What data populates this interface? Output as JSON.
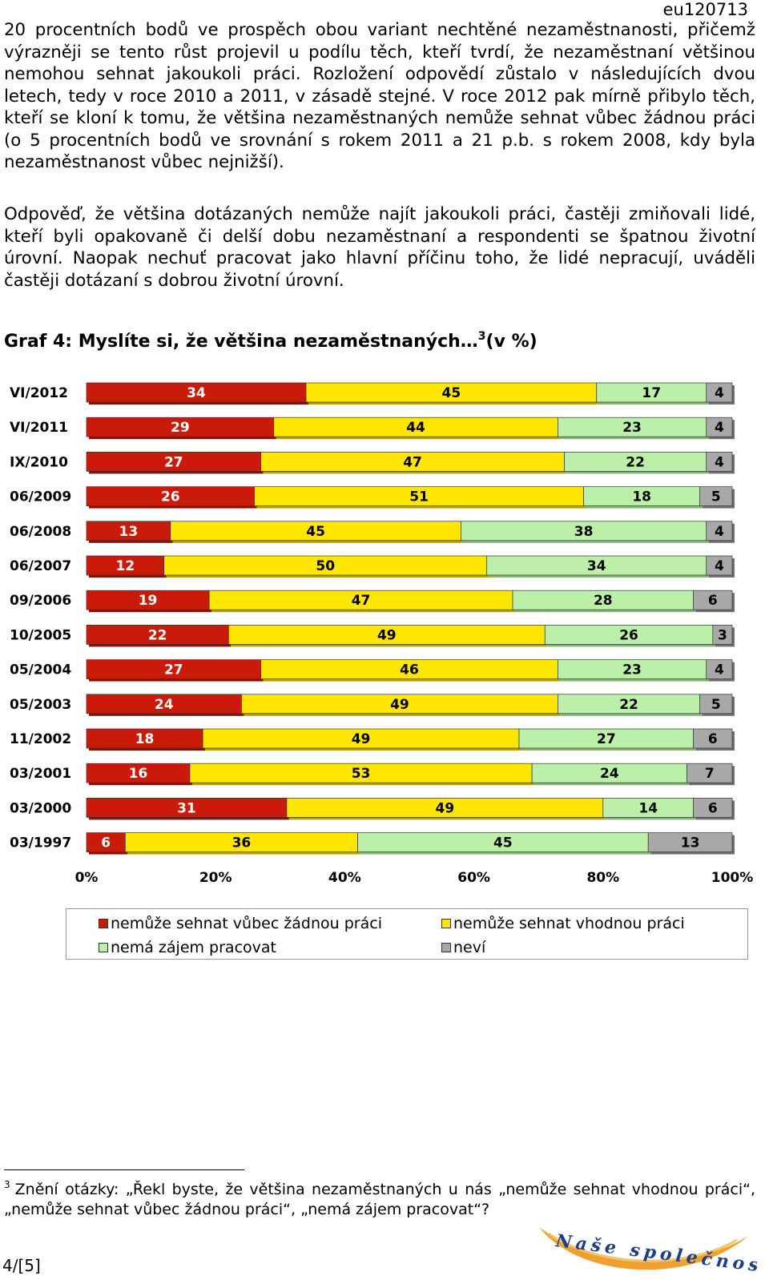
{
  "header": {
    "doc_code": "eu120713"
  },
  "paragraphs": [
    "20 procentních bodů ve prospěch obou variant nechtěné nezaměstnanosti, přičemž výrazněji se tento růst projevil u podílu těch, kteří tvrdí, že nezaměstnaní většinou nemohou sehnat jakoukoli práci. Rozložení odpovědí zůstalo v následujících dvou letech, tedy v roce 2010 a 2011, v zásadě stejné. V roce 2012 pak mírně přibylo těch, kteří se kloní k tomu, že většina nezaměstnaných nemůže sehnat vůbec žádnou práci (o 5 procentních bodů ve srovnání s rokem 2011 a 21 p.b. s rokem 2008, kdy byla nezaměstnanost vůbec nejnižší).",
    "Odpověď, že většina dotázaných nemůže najít jakoukoli práci, častěji zmiňovali lidé, kteří byli opakovaně či delší dobu nezaměstnaní a respondenti se špatnou životní úrovní. Naopak nechuť pracovat jako hlavní příčinu toho, že lidé nepracují, uváděli častěji dotázaní s dobrou životní úrovní."
  ],
  "graph": {
    "title": "Graf 4: Myslíte si, že většina nezaměstnaných…",
    "footnote_ref": "3",
    "title_suffix": "(v %)"
  },
  "chart_data": {
    "type": "bar",
    "orientation": "horizontal",
    "stacked": "percent",
    "categories": [
      "VI/2012",
      "VI/2011",
      "IX/2010",
      "06/2009",
      "06/2008",
      "06/2007",
      "09/2006",
      "10/2005",
      "05/2004",
      "05/2003",
      "11/2002",
      "03/2001",
      "03/2000",
      "03/1997"
    ],
    "series": [
      {
        "name": "nemůže sehnat vůbec žádnou práci",
        "color": "#cc1a0a",
        "values": [
          34,
          29,
          27,
          26,
          13,
          12,
          19,
          22,
          27,
          24,
          18,
          16,
          31,
          6
        ]
      },
      {
        "name": "nemůže sehnat vhodnou práci",
        "color": "#ffe600",
        "values": [
          45,
          44,
          47,
          51,
          45,
          50,
          47,
          49,
          46,
          49,
          49,
          53,
          49,
          36
        ]
      },
      {
        "name": "nemá zájem pracovat",
        "color": "#bcefa8",
        "values": [
          17,
          23,
          22,
          18,
          38,
          34,
          28,
          26,
          23,
          22,
          27,
          24,
          14,
          45
        ]
      },
      {
        "name": "neví",
        "color": "#a8a8a8",
        "values": [
          4,
          4,
          4,
          5,
          4,
          4,
          6,
          3,
          4,
          5,
          6,
          7,
          6,
          13
        ]
      }
    ],
    "xlim": [
      0,
      100
    ],
    "xticks": [
      "0%",
      "20%",
      "40%",
      "60%",
      "80%",
      "100%"
    ],
    "legend_position": "bottom",
    "grid": false
  },
  "footnote": {
    "number": "3",
    "text": "Znění otázky: „Řekl byste, že většina nezaměstnaných u nás „nemůže sehnat vhodnou práci“, „nemůže sehnat vůbec žádnou práci“, „nemá zájem pracovat“?"
  },
  "page_number": "4/[5]",
  "logo": {
    "text": "Naše společnost"
  }
}
